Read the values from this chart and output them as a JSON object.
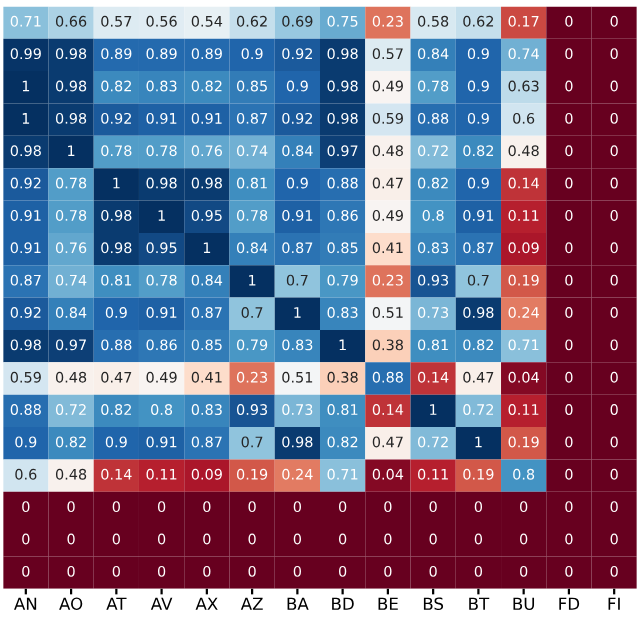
{
  "chart_data": {
    "type": "heatmap",
    "data_labels": true,
    "categories": [
      "AN",
      "AO",
      "AT",
      "AV",
      "AX",
      "AZ",
      "BA",
      "BD",
      "BE",
      "BS",
      "BT",
      "BU",
      "FD",
      "FI"
    ],
    "y_categories": [
      null,
      null,
      null,
      null,
      null,
      null,
      null,
      null,
      null,
      null,
      null,
      null,
      null,
      null,
      null,
      null,
      null,
      null
    ],
    "cells": [
      [
        0.71,
        0.66,
        0.57,
        0.56,
        0.54,
        0.62,
        0.69,
        0.75,
        0.23,
        0.58,
        0.62,
        0.17,
        0,
        0
      ],
      [
        0.99,
        0.98,
        0.89,
        0.89,
        0.89,
        0.9,
        0.92,
        0.98,
        0.57,
        0.84,
        0.9,
        0.74,
        0,
        0
      ],
      [
        1,
        0.98,
        0.82,
        0.83,
        0.82,
        0.85,
        0.9,
        0.98,
        0.49,
        0.78,
        0.9,
        0.63,
        0,
        0
      ],
      [
        1,
        0.98,
        0.92,
        0.91,
        0.91,
        0.87,
        0.92,
        0.98,
        0.59,
        0.88,
        0.9,
        0.6,
        0,
        0
      ],
      [
        0.98,
        1,
        0.78,
        0.78,
        0.76,
        0.74,
        0.84,
        0.97,
        0.48,
        0.72,
        0.82,
        0.48,
        0,
        0
      ],
      [
        0.92,
        0.78,
        1,
        0.98,
        0.98,
        0.81,
        0.9,
        0.88,
        0.47,
        0.82,
        0.9,
        0.14,
        0,
        0
      ],
      [
        0.91,
        0.78,
        0.98,
        1,
        0.95,
        0.78,
        0.91,
        0.86,
        0.49,
        0.8,
        0.91,
        0.11,
        0,
        0
      ],
      [
        0.91,
        0.76,
        0.98,
        0.95,
        1,
        0.84,
        0.87,
        0.85,
        0.41,
        0.83,
        0.87,
        0.09,
        0,
        0
      ],
      [
        0.87,
        0.74,
        0.81,
        0.78,
        0.84,
        1,
        0.7,
        0.79,
        0.23,
        0.93,
        0.7,
        0.19,
        0,
        0
      ],
      [
        0.92,
        0.84,
        0.9,
        0.91,
        0.87,
        0.7,
        1,
        0.83,
        0.51,
        0.73,
        0.98,
        0.24,
        0,
        0
      ],
      [
        0.98,
        0.97,
        0.88,
        0.86,
        0.85,
        0.79,
        0.83,
        1,
        0.38,
        0.81,
        0.82,
        0.71,
        0,
        0
      ],
      [
        0.59,
        0.48,
        0.47,
        0.49,
        0.41,
        0.23,
        0.51,
        0.38,
        0.88,
        0.14,
        0.47,
        0.04,
        0,
        0
      ],
      [
        0.88,
        0.72,
        0.82,
        0.8,
        0.83,
        0.93,
        0.73,
        0.81,
        0.14,
        1,
        0.72,
        0.11,
        0,
        0
      ],
      [
        0.9,
        0.82,
        0.9,
        0.91,
        0.87,
        0.7,
        0.98,
        0.82,
        0.47,
        0.72,
        1,
        0.19,
        0,
        0
      ],
      [
        0.6,
        0.48,
        0.14,
        0.11,
        0.09,
        0.19,
        0.24,
        0.71,
        0.04,
        0.11,
        0.19,
        0.8,
        0,
        0
      ],
      [
        0,
        0,
        0,
        0,
        0,
        0,
        0,
        0,
        0,
        0,
        0,
        0,
        0,
        0
      ],
      [
        0,
        0,
        0,
        0,
        0,
        0,
        0,
        0,
        0,
        0,
        0,
        0,
        0,
        0
      ],
      [
        0,
        0,
        0,
        0,
        0,
        0,
        0,
        0,
        0,
        0,
        0,
        0,
        0,
        0
      ]
    ]
  }
}
